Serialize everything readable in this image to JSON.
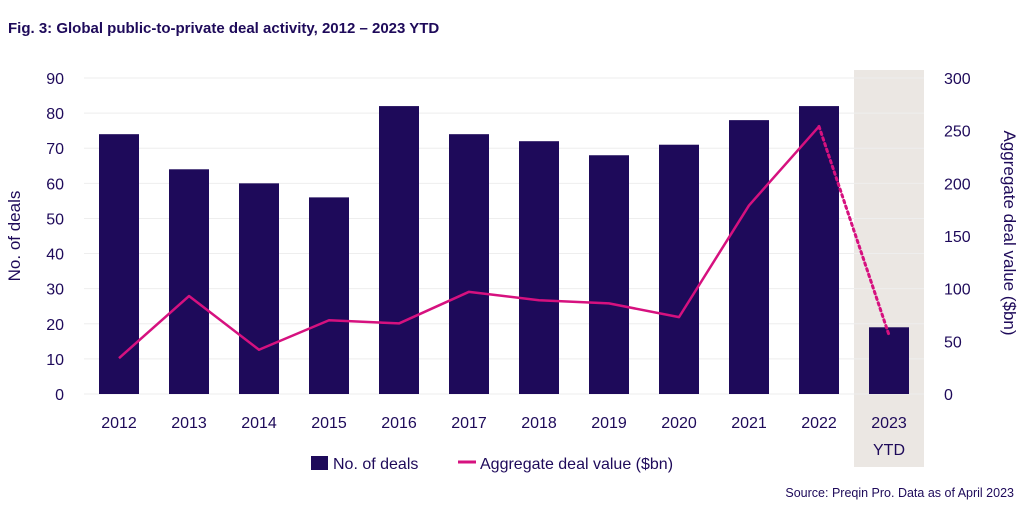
{
  "title": "Fig. 3: Global public-to-private deal activity, 2012 – 2023 YTD",
  "source": "Source: Preqin Pro. Data as of April 2023",
  "colors": {
    "bar": "#1e0a5a",
    "line": "#d6117f",
    "highlight": "#ebe7e3",
    "grid": "#eeeeee"
  },
  "chart_data": {
    "type": "bar",
    "categories": [
      [
        "2012"
      ],
      [
        "2013"
      ],
      [
        "2014"
      ],
      [
        "2015"
      ],
      [
        "2016"
      ],
      [
        "2017"
      ],
      [
        "2018"
      ],
      [
        "2019"
      ],
      [
        "2020"
      ],
      [
        "2021"
      ],
      [
        "2022"
      ],
      [
        "2023",
        "YTD"
      ]
    ],
    "series": [
      {
        "name": "No. of deals",
        "type": "bar",
        "axis": "left",
        "values": [
          74,
          64,
          60,
          56,
          82,
          74,
          72,
          68,
          71,
          78,
          82,
          19
        ]
      },
      {
        "name": "Aggregate deal value ($bn)",
        "type": "line",
        "axis": "right",
        "values": [
          34,
          93,
          42,
          70,
          67,
          97,
          89,
          86,
          73,
          179,
          254,
          56
        ],
        "dotted_from_index": 10
      }
    ],
    "y_left": {
      "label": "No. of deals",
      "min": 0,
      "max": 90,
      "ticks": [
        0,
        10,
        20,
        30,
        40,
        50,
        60,
        70,
        80,
        90
      ]
    },
    "y_right": {
      "label": "Aggregate deal value ($bn)",
      "min": 0,
      "max": 300,
      "ticks": [
        0,
        50,
        100,
        150,
        200,
        250,
        300
      ]
    },
    "highlight_category_index": 11,
    "legend_position": "bottom"
  }
}
